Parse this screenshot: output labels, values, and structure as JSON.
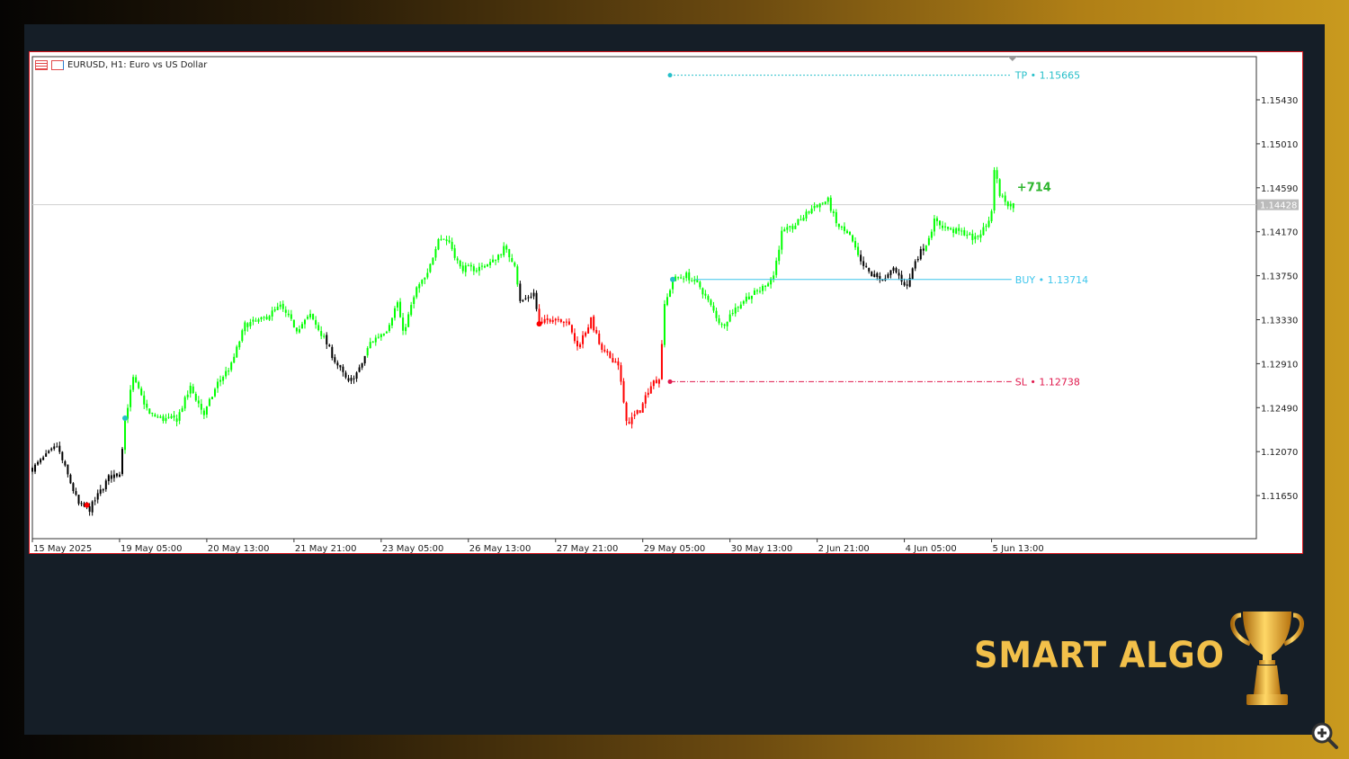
{
  "window": {
    "symbol_title": "EURUSD, H1:  Euro vs US Dollar"
  },
  "brand": {
    "text": "SMART ALGO",
    "icon": "trophy-icon"
  },
  "colors": {
    "bull": "#00ff00",
    "regime_black": "#000000",
    "regime_red": "#ff0000",
    "tp": "#26bfc9",
    "buy": "#3fc6ec",
    "sl": "#e0194d",
    "profit": "#2db52d",
    "border": "#e0161e",
    "accent_gold": "#f2c04a"
  },
  "chart_data": {
    "type": "candlestick",
    "title": "EURUSD, H1:  Euro vs US Dollar",
    "timeframe": "H1",
    "ylim": [
      1.113,
      1.1593
    ],
    "y_ticks": [
      "1.15430",
      "1.15010",
      "1.14590",
      "1.14170",
      "1.13750",
      "1.13330",
      "1.12910",
      "1.12490",
      "1.12070",
      "1.11650"
    ],
    "x_ticks": [
      {
        "label": "15 May 2025",
        "t": "2025-05-15 21:00"
      },
      {
        "label": "19 May 05:00",
        "t": "2025-05-19 05:00"
      },
      {
        "label": "20 May 13:00",
        "t": "2025-05-20 13:00"
      },
      {
        "label": "21 May 21:00",
        "t": "2025-05-21 21:00"
      },
      {
        "label": "23 May 05:00",
        "t": "2025-05-23 05:00"
      },
      {
        "label": "26 May 13:00",
        "t": "2025-05-26 13:00"
      },
      {
        "label": "27 May 21:00",
        "t": "2025-05-27 21:00"
      },
      {
        "label": "29 May 05:00",
        "t": "2025-05-29 05:00"
      },
      {
        "label": "30 May 13:00",
        "t": "2025-05-30 13:00"
      },
      {
        "label": "2 Jun 21:00",
        "t": "2025-06-02 21:00"
      },
      {
        "label": "4 Jun 05:00",
        "t": "2025-06-04 05:00"
      },
      {
        "label": "5 Jun 13:00",
        "t": "2025-06-05 13:00"
      }
    ],
    "close_path": [
      [
        "2025-05-15 21:00",
        1.11908
      ],
      [
        "2025-05-16 06:00",
        1.12123
      ],
      [
        "2025-05-16 14:00",
        1.11564
      ],
      [
        "2025-05-16 18:00",
        1.11521
      ],
      [
        "2025-05-19 01:00",
        1.11822
      ],
      [
        "2025-05-19 05:00",
        1.11865
      ],
      [
        "2025-05-19 07:00",
        1.12381
      ],
      [
        "2025-05-19 10:00",
        1.12767
      ],
      [
        "2025-05-19 16:00",
        1.12424
      ],
      [
        "2025-05-19 21:00",
        1.12381
      ],
      [
        "2025-05-20 02:00",
        1.12381
      ],
      [
        "2025-05-20 07:00",
        1.12681
      ],
      [
        "2025-05-20 12:00",
        1.12424
      ],
      [
        "2025-05-20 17:00",
        1.12724
      ],
      [
        "2025-05-20 22:00",
        1.12896
      ],
      [
        "2025-05-21 03:00",
        1.13282
      ],
      [
        "2025-05-21 09:00",
        1.13325
      ],
      [
        "2025-05-21 16:00",
        1.13454
      ],
      [
        "2025-05-21 22:00",
        1.1324
      ],
      [
        "2025-05-22 03:00",
        1.13368
      ],
      [
        "2025-05-22 08:00",
        1.13154
      ],
      [
        "2025-05-22 12:00",
        1.12939
      ],
      [
        "2025-05-22 17:00",
        1.12724
      ],
      [
        "2025-05-22 21:00",
        1.12853
      ],
      [
        "2025-05-23 01:00",
        1.13111
      ],
      [
        "2025-05-23 07:00",
        1.1324
      ],
      [
        "2025-05-23 11:00",
        1.13497
      ],
      [
        "2025-05-23 13:00",
        1.13197
      ],
      [
        "2025-05-23 18:00",
        1.13626
      ],
      [
        "2025-05-23 22:00",
        1.13755
      ],
      [
        "2025-05-26 02:00",
        1.14124
      ],
      [
        "2025-05-26 06:00",
        1.14073
      ],
      [
        "2025-05-26 10:00",
        1.13824
      ],
      [
        "2025-05-26 16:00",
        1.13815
      ],
      [
        "2025-05-26 22:00",
        1.13884
      ],
      [
        "2025-05-27 02:00",
        1.14013
      ],
      [
        "2025-05-27 06:00",
        1.13867
      ],
      [
        "2025-05-27 08:00",
        1.13497
      ],
      [
        "2025-05-27 13:00",
        1.13583
      ],
      [
        "2025-05-27 15:00",
        1.13282
      ],
      [
        "2025-05-27 20:00",
        1.13351
      ],
      [
        "2025-05-28 01:00",
        1.13325
      ],
      [
        "2025-05-28 05:00",
        1.13068
      ],
      [
        "2025-05-28 10:00",
        1.13325
      ],
      [
        "2025-05-28 14:00",
        1.13025
      ],
      [
        "2025-05-28 20:00",
        1.12913
      ],
      [
        "2025-05-28 23:00",
        1.12338
      ],
      [
        "2025-05-29 04:00",
        1.12466
      ],
      [
        "2025-05-29 08:00",
        1.12724
      ],
      [
        "2025-05-29 11:00",
        1.12767
      ],
      [
        "2025-05-29 13:00",
        1.13454
      ],
      [
        "2025-05-29 16:00",
        1.13712
      ],
      [
        "2025-05-29 21:00",
        1.13755
      ],
      [
        "2025-05-30 02:00",
        1.13643
      ],
      [
        "2025-05-30 07:00",
        1.13411
      ],
      [
        "2025-05-30 10:00",
        1.13266
      ],
      [
        "2025-05-30 14:00",
        1.13411
      ],
      [
        "2025-05-30 19:00",
        1.1354
      ],
      [
        "2025-06-02 00:00",
        1.13609
      ],
      [
        "2025-06-02 05:00",
        1.13755
      ],
      [
        "2025-06-02 08:00",
        1.14159
      ],
      [
        "2025-06-02 12:00",
        1.1421
      ],
      [
        "2025-06-02 16:00",
        1.14313
      ],
      [
        "2025-06-02 20:00",
        1.14416
      ],
      [
        "2025-06-03 01:00",
        1.14468
      ],
      [
        "2025-06-03 04:00",
        1.14245
      ],
      [
        "2025-06-03 09:00",
        1.14124
      ],
      [
        "2025-06-03 13:00",
        1.13867
      ],
      [
        "2025-06-03 17:00",
        1.13755
      ],
      [
        "2025-06-03 22:00",
        1.13712
      ],
      [
        "2025-06-04 01:00",
        1.13815
      ],
      [
        "2025-06-04 06:00",
        1.13643
      ],
      [
        "2025-06-04 09:00",
        1.13901
      ],
      [
        "2025-06-04 13:00",
        1.14056
      ],
      [
        "2025-06-04 16:00",
        1.1427
      ],
      [
        "2025-06-04 22:00",
        1.14185
      ],
      [
        "2025-06-05 03:00",
        1.14159
      ],
      [
        "2025-06-05 07:00",
        1.14099
      ],
      [
        "2025-06-05 11:00",
        1.14227
      ],
      [
        "2025-06-05 13:00",
        1.14356
      ],
      [
        "2025-06-05 14:00",
        1.14786
      ],
      [
        "2025-06-05 16:00",
        1.14528
      ],
      [
        "2025-06-05 19:00",
        1.14442
      ],
      [
        "2025-06-05 21:00",
        1.14416
      ]
    ],
    "candle_color_regimes": [
      {
        "from": "2025-05-15 21:00",
        "to": "2025-05-19 06:00",
        "color": "black"
      },
      {
        "from": "2025-05-19 07:00",
        "to": "2025-05-22 08:00",
        "color": "green"
      },
      {
        "from": "2025-05-22 09:00",
        "to": "2025-05-22 23:00",
        "color": "black"
      },
      {
        "from": "2025-05-23 00:00",
        "to": "2025-05-27 07:00",
        "color": "green"
      },
      {
        "from": "2025-05-27 08:00",
        "to": "2025-05-27 14:00",
        "color": "black"
      },
      {
        "from": "2025-05-27 15:00",
        "to": "2025-05-29 12:00",
        "color": "red"
      },
      {
        "from": "2025-05-29 13:00",
        "to": "2025-06-03 12:00",
        "color": "green"
      },
      {
        "from": "2025-06-03 13:00",
        "to": "2025-06-04 12:00",
        "color": "black"
      },
      {
        "from": "2025-06-04 13:00",
        "to": "2025-06-05 21:00",
        "color": "green"
      }
    ],
    "signal_dots": [
      {
        "t": "2025-05-16 17:00",
        "price": 1.1156,
        "color": "red"
      },
      {
        "t": "2025-05-19 07:00",
        "price": 1.1239,
        "color": "teal"
      },
      {
        "t": "2025-05-27 15:00",
        "price": 1.1329,
        "color": "red"
      },
      {
        "t": "2025-05-29 16:00",
        "price": 1.13714,
        "color": "teal"
      }
    ],
    "levels": [
      {
        "name": "TP",
        "label": "TP • 1.15665",
        "price": 1.15665,
        "from": "2025-05-29 15:00",
        "style": "dotted",
        "color": "tp"
      },
      {
        "name": "BUY",
        "label": "BUY • 1.13714",
        "price": 1.13714,
        "from": "2025-05-30 00:00",
        "style": "solid",
        "color": "buy"
      },
      {
        "name": "SL",
        "label": "SL • 1.12738",
        "price": 1.12738,
        "from": "2025-05-29 15:00",
        "style": "dashdot",
        "color": "sl"
      }
    ],
    "current_price": {
      "label": "1.14428",
      "price": 1.14428
    },
    "profit_label": "+714"
  }
}
